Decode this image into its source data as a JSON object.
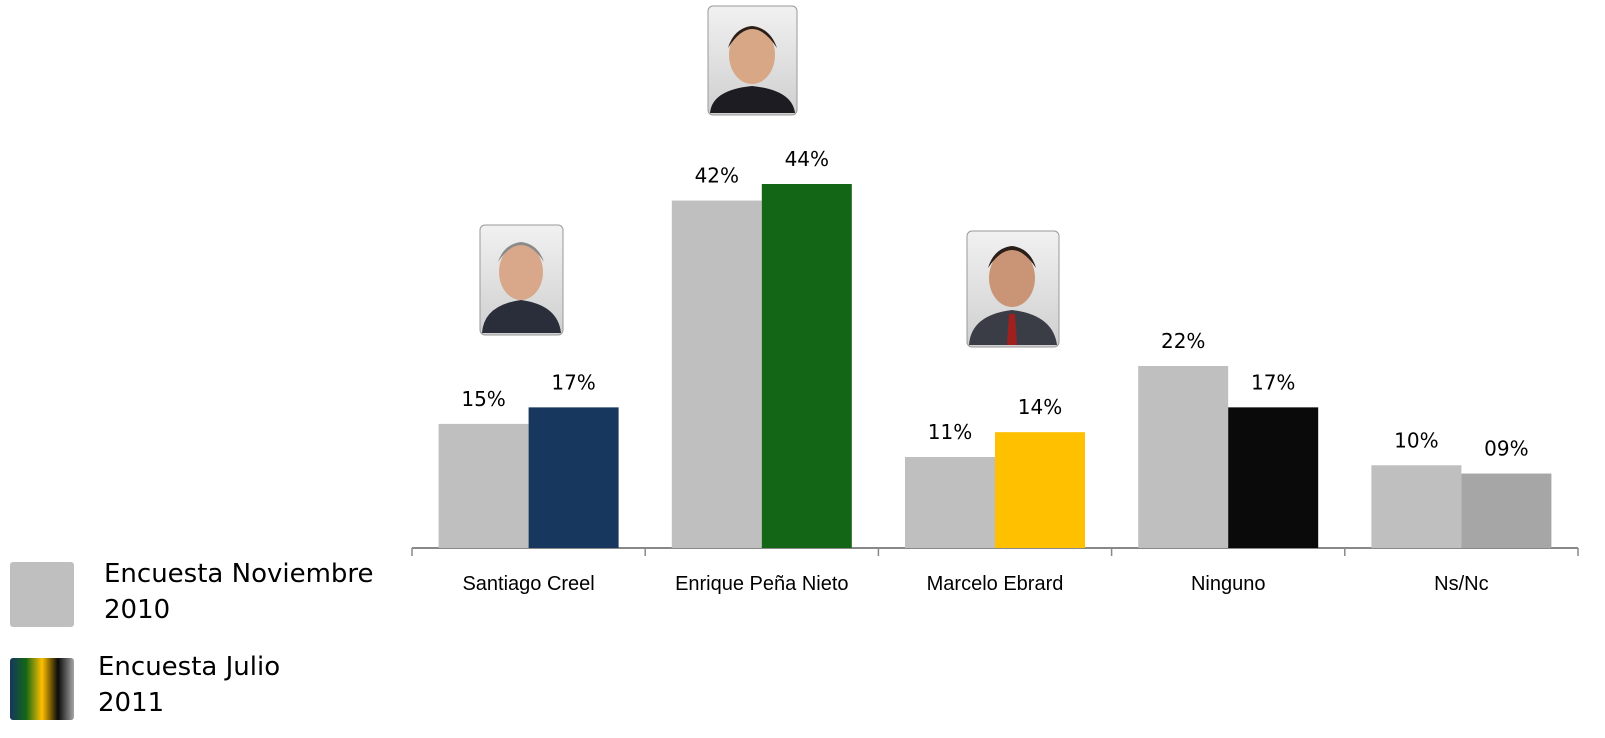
{
  "chart_data": {
    "type": "bar",
    "categories": [
      "Santiago Creel",
      "Enrique Peña Nieto",
      "Marcelo Ebrard",
      "Ninguno",
      "Ns/Nc"
    ],
    "series": [
      {
        "name": "Encuesta Noviembre 2010",
        "color": "#bfbfbf",
        "values": [
          15,
          42,
          11,
          22,
          10
        ],
        "value_labels": [
          "15%",
          "42%",
          "11%",
          "22%",
          "10%"
        ]
      },
      {
        "name": "Encuesta Julio 2011",
        "colors": [
          "#17375e",
          "#136616",
          "#ffc000",
          "#0a0a0a",
          "#a6a6a6"
        ],
        "values": [
          17,
          44,
          14,
          17,
          9
        ],
        "value_labels": [
          "17%",
          "44%",
          "14%",
          "17%",
          "09%"
        ]
      }
    ],
    "legend": "bottom-left"
  }
}
